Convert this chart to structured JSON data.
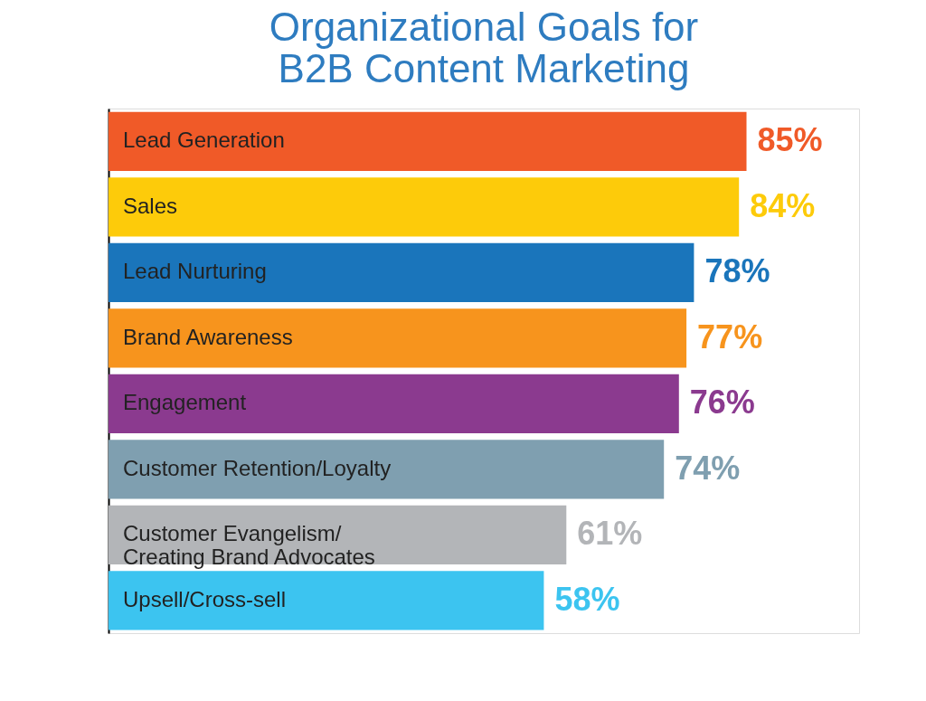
{
  "chart_data": {
    "type": "bar",
    "orientation": "horizontal",
    "title": "Organizational Goals for\nB2B Content Marketing",
    "categories": [
      "Lead Generation",
      "Sales",
      "Lead Nurturing",
      "Brand Awareness",
      "Engagement",
      "Customer Retention/Loyalty",
      "Customer Evangelism/\nCreating Brand Advocates",
      "Upsell/Cross-sell"
    ],
    "values": [
      85,
      84,
      78,
      77,
      76,
      74,
      61,
      58
    ],
    "colors": [
      "#f05a28",
      "#fdcb0a",
      "#1a75bb",
      "#f7941d",
      "#8b3a8f",
      "#7f9fb0",
      "#b3b5b8",
      "#3cc4f0"
    ],
    "value_labels": [
      "85%",
      "84%",
      "78%",
      "77%",
      "76%",
      "74%",
      "61%",
      "58%"
    ],
    "xlim": [
      0,
      100
    ],
    "tick_labels": false,
    "grid": false,
    "legend": false
  }
}
